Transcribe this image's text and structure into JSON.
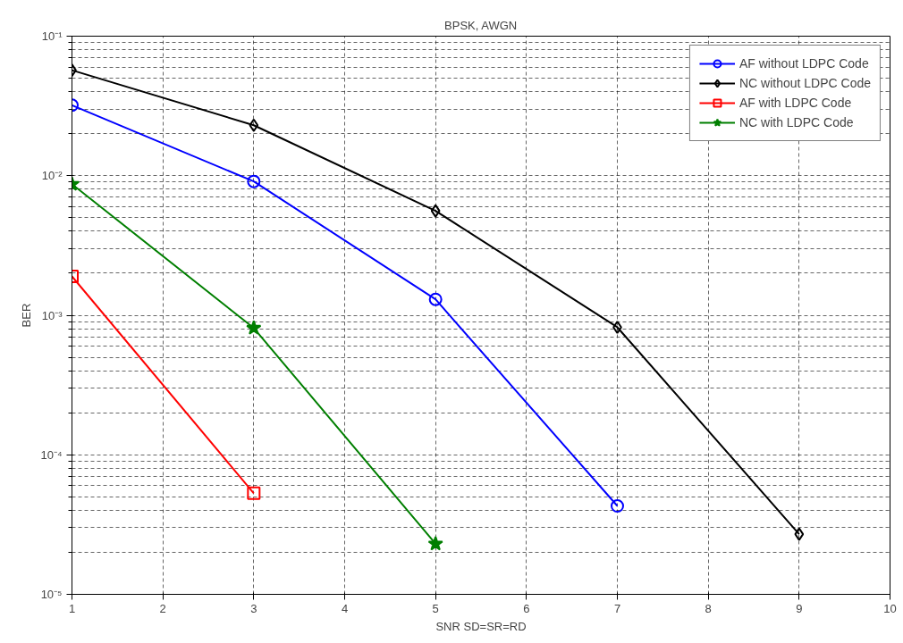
{
  "chart_data": {
    "type": "line",
    "title": "BPSK, AWGN",
    "xlabel": "SNR SD=SR=RD",
    "ylabel": "BER",
    "log": "y",
    "grid": true,
    "legend": "top right",
    "line_style": "solid",
    "xlim": [
      1,
      10
    ],
    "xticks": [
      1,
      2,
      3,
      4,
      5,
      6,
      7,
      8,
      9,
      10
    ],
    "ylim": [
      1e-05,
      0.1
    ],
    "yticks": [
      {
        "value": 1e-05,
        "label": "10⁻⁵"
      },
      {
        "value": 0.0001,
        "label": "10⁻⁴"
      },
      {
        "value": 0.001,
        "label": "10⁻³"
      },
      {
        "value": 0.01,
        "label": "10⁻²"
      },
      {
        "value": 0.1,
        "label": "10⁻¹"
      }
    ],
    "series": [
      {
        "name": "AF without LDPC Code",
        "color": "#0000ff",
        "marker": "circle",
        "x": [
          1,
          3,
          5,
          7
        ],
        "values": [
          0.032,
          0.0091,
          0.0013,
          4.3e-05
        ]
      },
      {
        "name": "NC without LDPC Code",
        "color": "#000000",
        "marker": "diamond",
        "x": [
          1,
          3,
          5,
          7,
          9
        ],
        "values": [
          0.057,
          0.023,
          0.0056,
          0.00082,
          2.7e-05
        ]
      },
      {
        "name": "AF with LDPC Code",
        "color": "#ff0000",
        "marker": "square",
        "x": [
          1,
          3
        ],
        "values": [
          0.0019,
          5.3e-05
        ]
      },
      {
        "name": "NC with LDPC Code",
        "color": "#007f00",
        "marker": "star",
        "x": [
          1,
          3,
          5
        ],
        "values": [
          0.0087,
          0.00081,
          2.3e-05
        ]
      }
    ]
  }
}
